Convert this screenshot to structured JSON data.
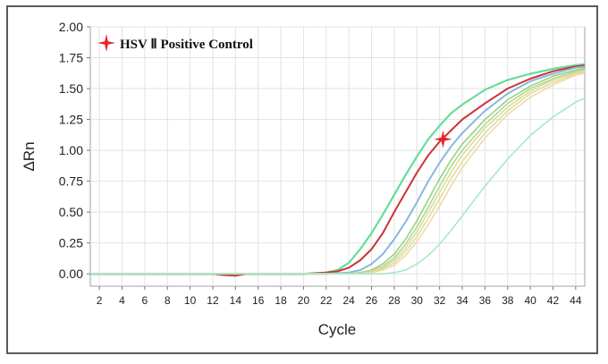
{
  "chart_data": {
    "type": "line",
    "xlabel": "Cycle",
    "ylabel": "ΔRn",
    "xlim": [
      1.2,
      44.8
    ],
    "ylim": [
      -0.1,
      2.0
    ],
    "x_ticks": [
      2,
      4,
      6,
      8,
      10,
      12,
      14,
      16,
      18,
      20,
      22,
      24,
      26,
      28,
      30,
      32,
      34,
      36,
      38,
      40,
      42,
      44
    ],
    "y_ticks": [
      0.0,
      0.25,
      0.5,
      0.75,
      1.0,
      1.25,
      1.5,
      1.75,
      2.0
    ],
    "grid": true,
    "legend": {
      "position": "top-left",
      "marker": "red-four-point-star",
      "text": "HSV Ⅱ Positive Control"
    },
    "highlight_marker": {
      "x": 32.3,
      "y": 1.09,
      "series": "HSV Ⅱ Positive Control"
    },
    "series": [
      {
        "color": "#66dd99",
        "width": 2.2,
        "points": [
          [
            1,
            0
          ],
          [
            20,
            0
          ],
          [
            22,
            0.01
          ],
          [
            23,
            0.03
          ],
          [
            24,
            0.09
          ],
          [
            25,
            0.2
          ],
          [
            26,
            0.33
          ],
          [
            27,
            0.48
          ],
          [
            28,
            0.64
          ],
          [
            29,
            0.8
          ],
          [
            30,
            0.95
          ],
          [
            31,
            1.09
          ],
          [
            32,
            1.2
          ],
          [
            33,
            1.3
          ],
          [
            34,
            1.37
          ],
          [
            36,
            1.49
          ],
          [
            38,
            1.57
          ],
          [
            40,
            1.62
          ],
          [
            42,
            1.66
          ],
          [
            44,
            1.69
          ],
          [
            45,
            1.7
          ]
        ]
      },
      {
        "name": "HSV Ⅱ Positive Control",
        "color": "#cc3333",
        "width": 2.0,
        "points": [
          [
            1,
            0
          ],
          [
            12,
            0
          ],
          [
            13,
            -0.01
          ],
          [
            14,
            -0.015
          ],
          [
            15,
            0
          ],
          [
            20,
            0
          ],
          [
            22,
            0.01
          ],
          [
            23,
            0.02
          ],
          [
            24,
            0.05
          ],
          [
            25,
            0.11
          ],
          [
            26,
            0.2
          ],
          [
            27,
            0.33
          ],
          [
            28,
            0.5
          ],
          [
            29,
            0.66
          ],
          [
            30,
            0.82
          ],
          [
            31,
            0.96
          ],
          [
            32,
            1.07
          ],
          [
            33,
            1.16
          ],
          [
            34,
            1.25
          ],
          [
            36,
            1.38
          ],
          [
            38,
            1.5
          ],
          [
            40,
            1.58
          ],
          [
            42,
            1.64
          ],
          [
            44,
            1.68
          ],
          [
            45,
            1.69
          ]
        ]
      },
      {
        "color": "#88b8e0",
        "width": 2.0,
        "points": [
          [
            1,
            0
          ],
          [
            22,
            0
          ],
          [
            24,
            0.01
          ],
          [
            25,
            0.03
          ],
          [
            26,
            0.08
          ],
          [
            27,
            0.16
          ],
          [
            28,
            0.28
          ],
          [
            29,
            0.42
          ],
          [
            30,
            0.58
          ],
          [
            31,
            0.75
          ],
          [
            32,
            0.9
          ],
          [
            33,
            1.03
          ],
          [
            34,
            1.14
          ],
          [
            36,
            1.32
          ],
          [
            38,
            1.46
          ],
          [
            40,
            1.56
          ],
          [
            42,
            1.62
          ],
          [
            44,
            1.67
          ],
          [
            45,
            1.68
          ]
        ]
      },
      {
        "color": "#9ad27a",
        "width": 1.6,
        "points": [
          [
            1,
            0
          ],
          [
            24,
            0
          ],
          [
            25,
            0.01
          ],
          [
            26,
            0.03
          ],
          [
            27,
            0.08
          ],
          [
            28,
            0.16
          ],
          [
            29,
            0.28
          ],
          [
            30,
            0.43
          ],
          [
            31,
            0.6
          ],
          [
            32,
            0.77
          ],
          [
            33,
            0.92
          ],
          [
            34,
            1.05
          ],
          [
            36,
            1.25
          ],
          [
            38,
            1.41
          ],
          [
            40,
            1.52
          ],
          [
            42,
            1.6
          ],
          [
            44,
            1.65
          ],
          [
            45,
            1.67
          ]
        ]
      },
      {
        "color": "#a6dca0",
        "width": 1.6,
        "points": [
          [
            1,
            0
          ],
          [
            24,
            0
          ],
          [
            25,
            0.01
          ],
          [
            26,
            0.02
          ],
          [
            27,
            0.06
          ],
          [
            28,
            0.13
          ],
          [
            29,
            0.24
          ],
          [
            30,
            0.38
          ],
          [
            31,
            0.54
          ],
          [
            32,
            0.71
          ],
          [
            33,
            0.87
          ],
          [
            34,
            1.0
          ],
          [
            36,
            1.21
          ],
          [
            38,
            1.38
          ],
          [
            40,
            1.5
          ],
          [
            42,
            1.58
          ],
          [
            44,
            1.64
          ],
          [
            45,
            1.66
          ]
        ]
      },
      {
        "color": "#e8d890",
        "width": 1.6,
        "points": [
          [
            1,
            0
          ],
          [
            25,
            0
          ],
          [
            26,
            0.02
          ],
          [
            27,
            0.05
          ],
          [
            28,
            0.11
          ],
          [
            29,
            0.21
          ],
          [
            30,
            0.34
          ],
          [
            31,
            0.5
          ],
          [
            32,
            0.66
          ],
          [
            33,
            0.82
          ],
          [
            34,
            0.96
          ],
          [
            36,
            1.18
          ],
          [
            38,
            1.35
          ],
          [
            40,
            1.48
          ],
          [
            42,
            1.57
          ],
          [
            44,
            1.63
          ],
          [
            45,
            1.65
          ]
        ]
      },
      {
        "color": "#d8e0a0",
        "width": 1.6,
        "points": [
          [
            1,
            0
          ],
          [
            25,
            0
          ],
          [
            26,
            0.01
          ],
          [
            27,
            0.04
          ],
          [
            28,
            0.09
          ],
          [
            29,
            0.18
          ],
          [
            30,
            0.3
          ],
          [
            31,
            0.45
          ],
          [
            32,
            0.61
          ],
          [
            33,
            0.77
          ],
          [
            34,
            0.91
          ],
          [
            36,
            1.14
          ],
          [
            38,
            1.32
          ],
          [
            40,
            1.46
          ],
          [
            42,
            1.55
          ],
          [
            44,
            1.62
          ],
          [
            45,
            1.64
          ]
        ]
      },
      {
        "color": "#f0d8a8",
        "width": 1.6,
        "points": [
          [
            1,
            0
          ],
          [
            25,
            0
          ],
          [
            26,
            0.01
          ],
          [
            27,
            0.03
          ],
          [
            28,
            0.07
          ],
          [
            29,
            0.15
          ],
          [
            30,
            0.26
          ],
          [
            31,
            0.4
          ],
          [
            32,
            0.55
          ],
          [
            33,
            0.71
          ],
          [
            34,
            0.86
          ],
          [
            36,
            1.1
          ],
          [
            38,
            1.29
          ],
          [
            40,
            1.43
          ],
          [
            42,
            1.53
          ],
          [
            44,
            1.61
          ],
          [
            45,
            1.63
          ]
        ]
      },
      {
        "color": "#a8e8c8",
        "width": 1.6,
        "points": [
          [
            1,
            0
          ],
          [
            27,
            0
          ],
          [
            28,
            0.01
          ],
          [
            29,
            0.03
          ],
          [
            30,
            0.08
          ],
          [
            31,
            0.15
          ],
          [
            32,
            0.24
          ],
          [
            33,
            0.35
          ],
          [
            34,
            0.47
          ],
          [
            35,
            0.59
          ],
          [
            36,
            0.71
          ],
          [
            38,
            0.93
          ],
          [
            40,
            1.12
          ],
          [
            42,
            1.27
          ],
          [
            44,
            1.39
          ],
          [
            45,
            1.43
          ]
        ]
      }
    ]
  }
}
